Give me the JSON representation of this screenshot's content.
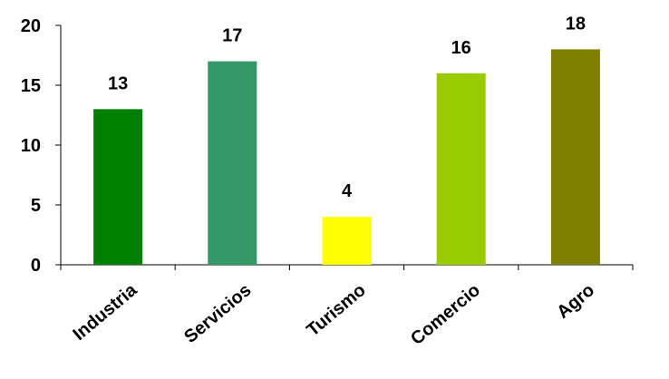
{
  "chart_data": {
    "type": "bar",
    "title": "",
    "xlabel": "",
    "ylabel": "",
    "categories": [
      "Industria",
      "Servicios",
      "Turismo",
      "Comercio",
      "Agro"
    ],
    "values": [
      13,
      17,
      4,
      16,
      18
    ],
    "data_labels": [
      "13",
      "17",
      "4",
      "16",
      "18"
    ],
    "bar_colors": [
      "#008000",
      "#339966",
      "#ffff00",
      "#99cc00",
      "#808000"
    ],
    "ylim": [
      0,
      20
    ],
    "yticks": [
      0,
      5,
      10,
      15,
      20
    ],
    "ytick_labels": [
      "0",
      "5",
      "10",
      "15",
      "20"
    ],
    "grid": false,
    "legend": "none"
  }
}
